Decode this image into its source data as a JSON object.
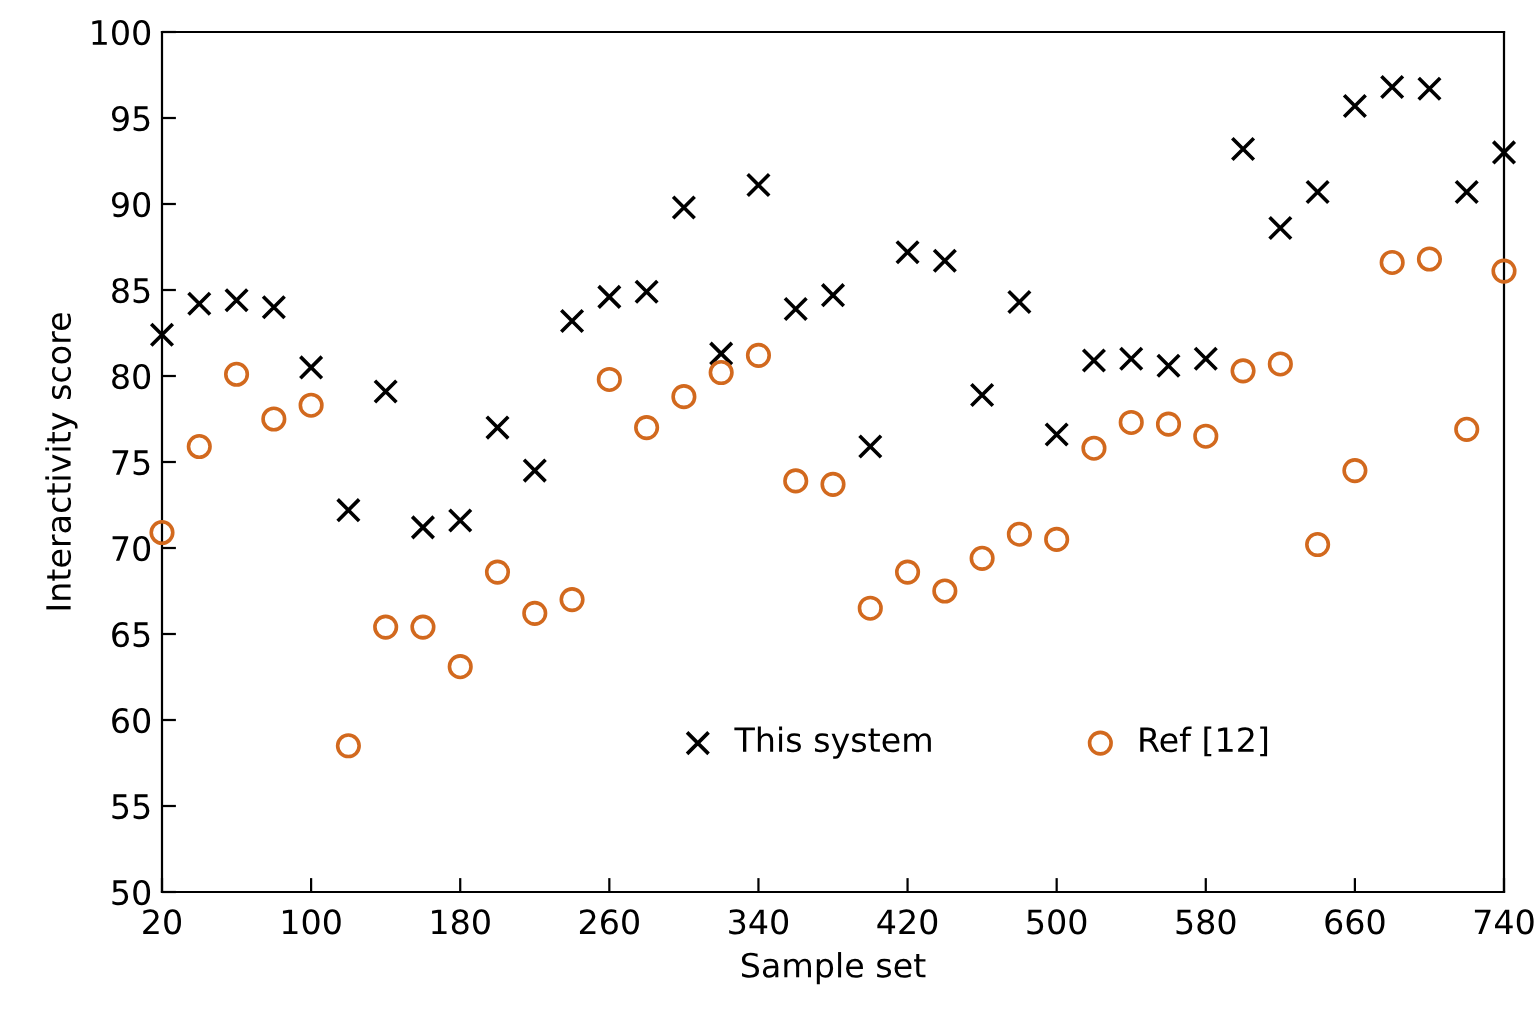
{
  "chart_data": {
    "type": "scatter",
    "xlabel": "Sample set",
    "ylabel": "Interactivity score",
    "x": [
      20,
      40,
      60,
      80,
      100,
      120,
      140,
      160,
      180,
      200,
      220,
      240,
      260,
      280,
      300,
      320,
      340,
      360,
      380,
      400,
      420,
      440,
      460,
      480,
      500,
      520,
      540,
      560,
      580,
      600,
      620,
      640,
      660,
      680,
      700,
      720,
      740
    ],
    "series": [
      {
        "name": "This system",
        "color": "#000000",
        "marker": "cross",
        "values": [
          82.4,
          84.2,
          84.4,
          84.0,
          80.5,
          72.2,
          79.1,
          71.2,
          71.6,
          77.0,
          74.5,
          83.2,
          84.6,
          84.9,
          89.8,
          81.3,
          91.1,
          83.9,
          84.7,
          75.9,
          87.2,
          86.7,
          78.9,
          84.3,
          76.6,
          80.9,
          81.0,
          80.6,
          81.0,
          93.2,
          88.6,
          90.7,
          95.7,
          96.8,
          96.7,
          90.7,
          93.0
        ]
      },
      {
        "name": "Ref [12]",
        "color": "#d2691e",
        "marker": "circle",
        "values": [
          70.9,
          75.9,
          80.1,
          77.5,
          78.3,
          58.5,
          65.4,
          65.4,
          63.1,
          68.6,
          66.2,
          67.0,
          79.8,
          77.0,
          78.8,
          80.2,
          81.2,
          73.9,
          73.7,
          66.5,
          68.6,
          67.5,
          69.4,
          70.8,
          70.5,
          75.8,
          77.3,
          77.2,
          76.5,
          80.3,
          80.7,
          70.2,
          74.5,
          86.6,
          86.8,
          76.9,
          86.1
        ]
      }
    ],
    "xlim": [
      20,
      740
    ],
    "xticks": [
      20,
      100,
      180,
      260,
      340,
      420,
      500,
      580,
      660,
      740
    ],
    "ylim": [
      50,
      100
    ],
    "yticks": [
      50,
      55,
      60,
      65,
      70,
      75,
      80,
      85,
      90,
      95,
      100
    ],
    "grid": false,
    "legend": "bottom"
  }
}
